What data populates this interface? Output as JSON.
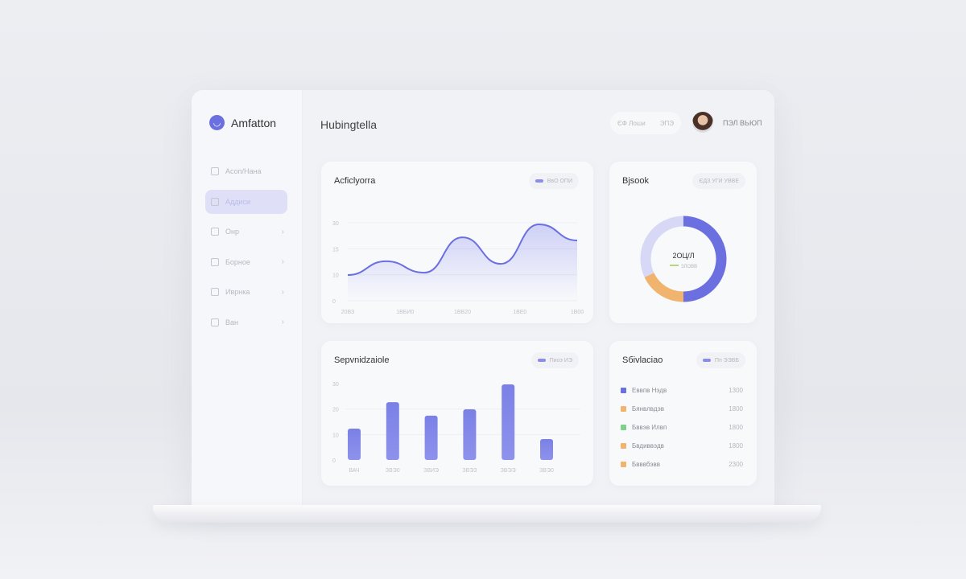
{
  "app": {
    "name": "Amfatton",
    "page_title": "Hubingtella"
  },
  "header": {
    "pill_left": "ЄФ Лоши",
    "pill_right": "ЭПЭ",
    "user_name": "ПЭЛ ВЬЮП"
  },
  "sidebar": {
    "items": [
      {
        "label": "Асоп/Нана",
        "icon": "box-icon",
        "active": false,
        "chevron": false
      },
      {
        "label": "Аддиси",
        "icon": "circle-icon",
        "active": true,
        "chevron": false
      },
      {
        "label": "Онр",
        "icon": "layers-icon",
        "active": false,
        "chevron": true
      },
      {
        "label": "Борное",
        "icon": "plus-square-icon",
        "active": false,
        "chevron": true
      },
      {
        "label": "Иврнка",
        "icon": "list-icon",
        "active": false,
        "chevron": true
      },
      {
        "label": "Ван",
        "icon": "folder-icon",
        "active": false,
        "chevron": true
      }
    ]
  },
  "colors": {
    "accent": "#6b6fe0",
    "orange": "#f0b46e",
    "green": "#7fd08a",
    "lavender": "#d6d8f6"
  },
  "chart_data": [
    {
      "type": "area",
      "title": "Acficlyorra",
      "legend": "ВвО ОПИ",
      "yticks": [
        "30",
        "15",
        "10",
        "0"
      ],
      "ylim": [
        0,
        30
      ],
      "xticks": [
        "20ВЗ",
        "1ВБИ0",
        "1ВВ20",
        "1ВЕ0",
        "1В00"
      ],
      "values": [
        9.9,
        15.2,
        10.8,
        24.4,
        14.2,
        29.4,
        23.2
      ]
    },
    {
      "type": "pie",
      "title": "Bjsook",
      "legend": "ЄДЗ УГИ УВВЕ",
      "center_label": "2ОЦ/Л",
      "center_sub": "ЗЛОВВ",
      "slices": [
        {
          "value": 50,
          "color": "#6b6fe0"
        },
        {
          "value": 18,
          "color": "#f0b46e"
        },
        {
          "value": 32,
          "color": "#d6d8f6"
        }
      ]
    },
    {
      "type": "bar",
      "title": "Sepvnidzaiole",
      "legend": "Пиоэ ИЭ",
      "yticks": [
        "30",
        "20",
        "10",
        "0"
      ],
      "ylim": [
        0,
        30
      ],
      "categories": [
        "ВАЧ",
        "ЗВЭ0",
        "ЗВИЭ",
        "ЗВЭЗ",
        "ЗВЭЭ",
        "ЗВЭ0"
      ],
      "values": [
        12.3,
        22.7,
        17.4,
        19.9,
        29.7,
        8.2
      ]
    },
    {
      "type": "table",
      "title": "Sбivlaciao",
      "legend": "Пп ЭЭВБ",
      "rows": [
        {
          "label": "Еввпв Нэдв",
          "value": "1300",
          "color": "#6b6fe0"
        },
        {
          "label": "Бянвлвдэв",
          "value": "1800",
          "color": "#f0b46e"
        },
        {
          "label": "Бввэв Илвп",
          "value": "1800",
          "color": "#7fd08a"
        },
        {
          "label": "Бвдиввэдв",
          "value": "1800",
          "color": "#f0b46e"
        },
        {
          "label": "Бвввбэвв",
          "value": "2300",
          "color": "#f0b46e"
        }
      ]
    }
  ]
}
